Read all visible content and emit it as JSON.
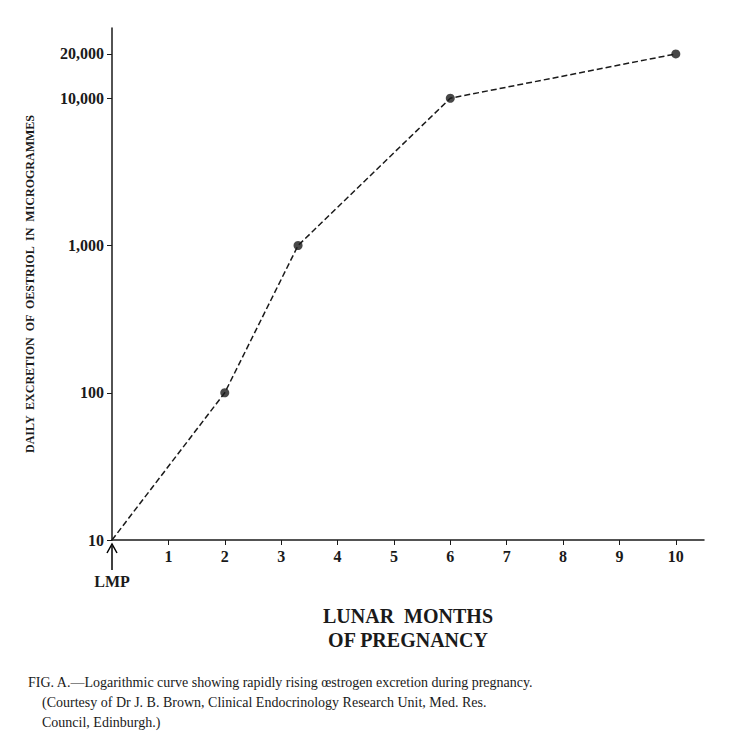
{
  "chart_data": {
    "type": "line",
    "xlabel": [
      "LUNAR  MONTHS",
      "OF PREGNANCY"
    ],
    "ylabel": "DAILY  EXCRETION  OF  OESTRIOL  IN  MICROGRAMMES",
    "x": [
      0,
      2,
      3.3,
      6,
      10
    ],
    "series": [
      {
        "type": "line",
        "line_style": "dashed",
        "marker": "none",
        "color": "#1a1a1a",
        "values": [
          10,
          100,
          1000,
          10000,
          20000
        ]
      },
      {
        "type": "scatter",
        "marker": "circle",
        "color": "#1a1a1a",
        "values": [
          null,
          100,
          1000,
          10000,
          20000
        ]
      }
    ],
    "xlim": [
      0,
      10.5
    ],
    "xticks": [
      1,
      2,
      3,
      4,
      5,
      6,
      7,
      8,
      9,
      10
    ],
    "ylim": [
      10,
      30000
    ],
    "yticks": [
      10,
      100,
      {
        "value": 1000,
        "label": "1,000"
      },
      {
        "value": 10000,
        "label": "10,000"
      },
      {
        "value": 20000,
        "label": "20,000"
      }
    ],
    "log": "y",
    "grid": false,
    "annotations": [
      {
        "text": "LMP",
        "x": 0
      }
    ],
    "caption": [
      "FIG. A.—Logarithmic curve showing rapidly rising œstrogen excretion during pregnancy.",
      "    (Courtesy of Dr J. B. Brown, Clinical Endocrinology Research Unit, Med. Res.",
      "    Council, Edinburgh.)"
    ]
  }
}
